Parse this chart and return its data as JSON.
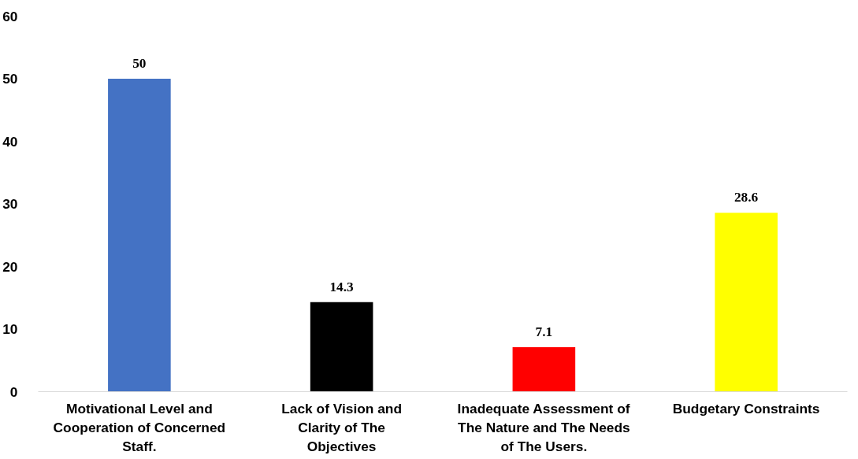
{
  "chart_data": {
    "type": "bar",
    "categories": [
      "Motivational Level and Cooperation of Concerned Staff.",
      "Lack of Vision and Clarity of The Objectives",
      "Inadequate Assessment of The Nature and The Needs of The Users.",
      "Budgetary Constraints"
    ],
    "values": [
      50,
      14.3,
      7.1,
      28.6
    ],
    "colors": [
      "#4472c4",
      "#000000",
      "#ff0000",
      "#ffff00"
    ],
    "ylim": [
      0,
      60
    ],
    "yticks": [
      0,
      10,
      20,
      30,
      40,
      50,
      60
    ],
    "grid": false,
    "data_labels": true
  }
}
